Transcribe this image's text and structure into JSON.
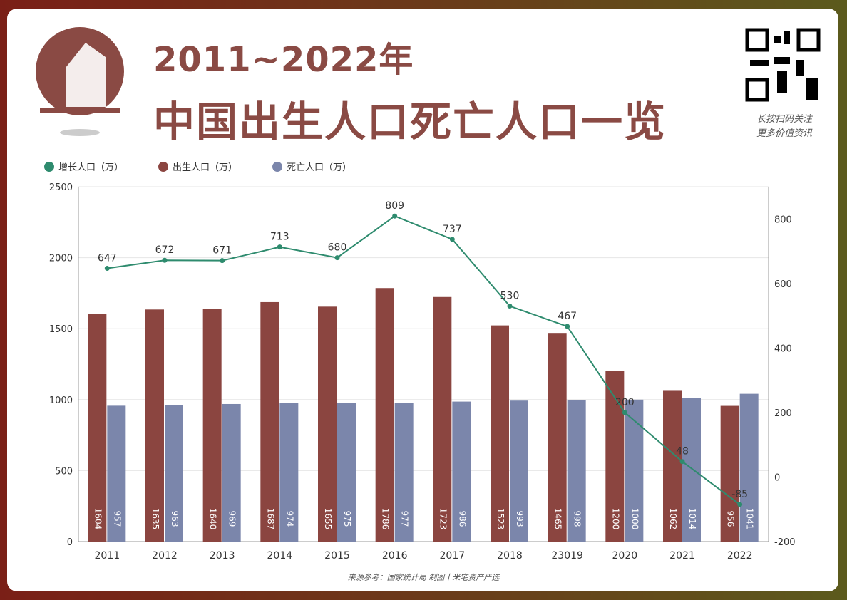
{
  "header": {
    "title_line1": "2011~2022年",
    "title_line2": "中国出生人口死亡人口一览",
    "qr_caption_1": "长按扫码关注",
    "qr_caption_2": "更多价值资讯"
  },
  "footer": "来源参考：国家统计局 制图丨米宅资产严选",
  "chart_data": {
    "type": "bar+line",
    "categories": [
      "2011",
      "2012",
      "2013",
      "2014",
      "2015",
      "2016",
      "2017",
      "2018",
      "23019",
      "2020",
      "2021",
      "2022"
    ],
    "series": [
      {
        "name": "增长人口（万）",
        "type": "line",
        "axis": "right",
        "color": "#2e8b6e",
        "values": [
          647,
          672,
          671,
          713,
          680,
          809,
          737,
          530,
          467,
          200,
          48,
          -85
        ]
      },
      {
        "name": "出生人口（万）",
        "type": "bar",
        "axis": "left",
        "color": "#8b4540",
        "values": [
          1604,
          1635,
          1640,
          1687,
          1655,
          1786,
          1723,
          1523,
          1465,
          1200,
          1062,
          956
        ]
      },
      {
        "name": "死亡人口（万）",
        "type": "bar",
        "axis": "left",
        "color": "#7b86ab",
        "values": [
          957,
          963,
          969,
          974,
          975,
          977,
          986,
          993,
          998,
          1000,
          1014,
          1041
        ]
      }
    ],
    "left_ylim": [
      0,
      2500
    ],
    "left_ticks": [
      0,
      500,
      1000,
      1500,
      2000,
      2500
    ],
    "right_ylim": [
      -200,
      900
    ],
    "right_ticks": [
      -200,
      0,
      200,
      400,
      600,
      800
    ],
    "legend": "top-left",
    "grid": true
  }
}
